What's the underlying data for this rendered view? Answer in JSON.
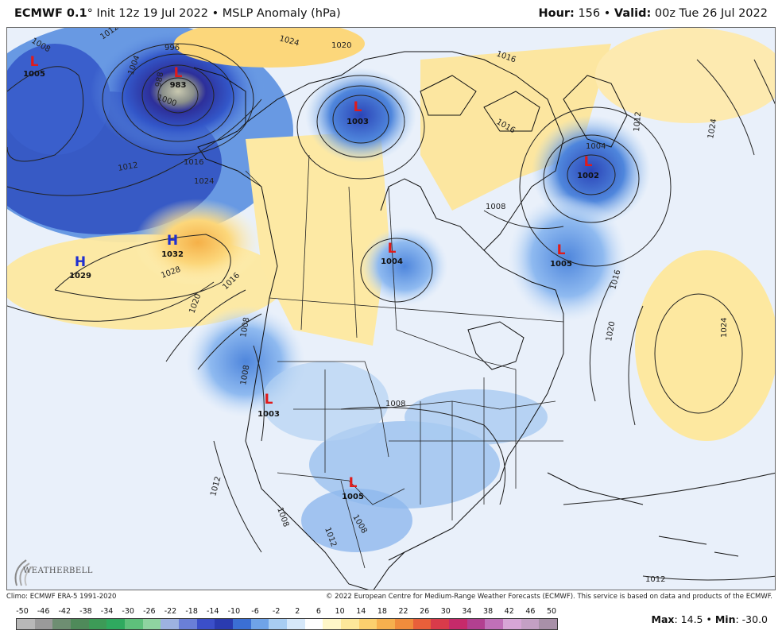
{
  "header": {
    "model": "ECMWF 0.1",
    "deg": "°",
    "init": "Init 12z 19 Jul 2022",
    "bullet": "•",
    "field": "MSLP Anomaly (hPa)",
    "hour_label": "Hour:",
    "hour_value": "156",
    "valid_label": "Valid:",
    "valid_value": "00z Tue 26 Jul 2022"
  },
  "footer": {
    "climo": "Climo: ECMWF ERA-5 1991-2020",
    "copyright": "© 2022 European Centre for Medium-Range Weather Forecasts (ECMWF). This service is based on data and products of the ECMWF.",
    "max_label": "Max",
    "max_value": "14.5",
    "min_label": "Min",
    "min_value": "-30.0",
    "logo_text": "WEATHERBELL"
  },
  "colorbar": {
    "ticks": [
      "-50",
      "-46",
      "-42",
      "-38",
      "-34",
      "-30",
      "-26",
      "-22",
      "-18",
      "-14",
      "-10",
      "-6",
      "-2",
      "2",
      "6",
      "10",
      "14",
      "18",
      "22",
      "26",
      "30",
      "34",
      "38",
      "42",
      "46",
      "50"
    ],
    "colors": [
      "#b8b8b8",
      "#9a9a9a",
      "#6e8e72",
      "#4f8a5a",
      "#3d9b57",
      "#2faa5f",
      "#5ec07b",
      "#8fd3a0",
      "#9db2e0",
      "#6a7fd8",
      "#3b4fc9",
      "#2a3bb0",
      "#3b6fd4",
      "#6fa3e8",
      "#a8cdf2",
      "#d6e8fa",
      "#ffffff",
      "#fff7c8",
      "#fde89a",
      "#fbd06e",
      "#f6b04e",
      "#f08c3c",
      "#e85f3a",
      "#d93b4a",
      "#c62a6a",
      "#b24090",
      "#c070b8",
      "#d7a6d6",
      "#c4a0c4",
      "#a890a8"
    ]
  },
  "systems": [
    {
      "type": "L",
      "value": "1005"
    },
    {
      "type": "L",
      "value": "983"
    },
    {
      "type": "L",
      "value": "1003"
    },
    {
      "type": "L",
      "value": "1002"
    },
    {
      "type": "H",
      "value": "1032"
    },
    {
      "type": "H",
      "value": "1029"
    },
    {
      "type": "L",
      "value": "1004"
    },
    {
      "type": "L",
      "value": "1005"
    },
    {
      "type": "L",
      "value": "1003"
    },
    {
      "type": "L",
      "value": "1005"
    }
  ],
  "contours": [
    "1008",
    "1012",
    "996",
    "1004",
    "988",
    "1000",
    "1016",
    "1024",
    "1020",
    "1024",
    "1016",
    "1016",
    "1012",
    "1004",
    "1008",
    "1028",
    "1020",
    "1016",
    "1008",
    "1024",
    "1020",
    "1016",
    "1008",
    "1008",
    "1012",
    "1008",
    "1012",
    "1008",
    "1012",
    "1024",
    "1012"
  ]
}
